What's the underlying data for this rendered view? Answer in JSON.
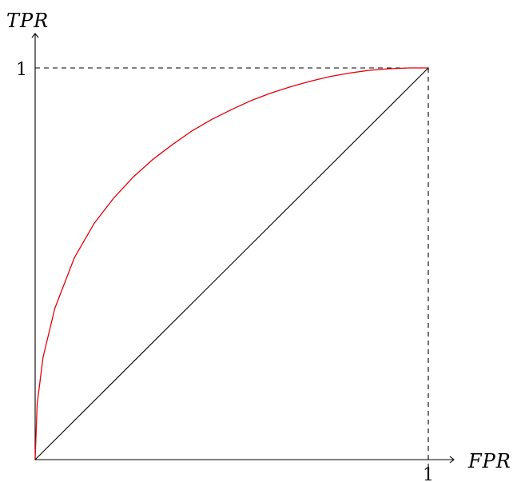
{
  "chart_data": {
    "type": "line",
    "xlabel": "FPR",
    "ylabel": "TPR",
    "xlim": [
      0,
      1
    ],
    "ylim": [
      0,
      1
    ],
    "x_ticks": [
      "1"
    ],
    "y_ticks": [
      "1"
    ],
    "grid": false,
    "series": [
      {
        "color": "#e8000b",
        "x": [
          0,
          0.005,
          0.02,
          0.05,
          0.1,
          0.15,
          0.2,
          0.25,
          0.3,
          0.35,
          0.4,
          0.45,
          0.5,
          0.55,
          0.6,
          0.65,
          0.7,
          0.75,
          0.8,
          0.85,
          0.9,
          0.95,
          1.0
        ],
        "y": [
          0,
          0.141,
          0.261,
          0.386,
          0.516,
          0.603,
          0.668,
          0.722,
          0.767,
          0.805,
          0.84,
          0.869,
          0.894,
          0.917,
          0.936,
          0.952,
          0.966,
          0.978,
          0.987,
          0.994,
          0.998,
          1.0,
          1.0
        ]
      },
      {
        "color": "#000000",
        "x": [
          0,
          1
        ],
        "y": [
          0,
          1
        ]
      }
    ],
    "reference_lines": [
      {
        "orientation": "horizontal",
        "value": 1,
        "style": "dashed"
      },
      {
        "orientation": "vertical",
        "value": 1,
        "style": "dashed"
      }
    ]
  }
}
